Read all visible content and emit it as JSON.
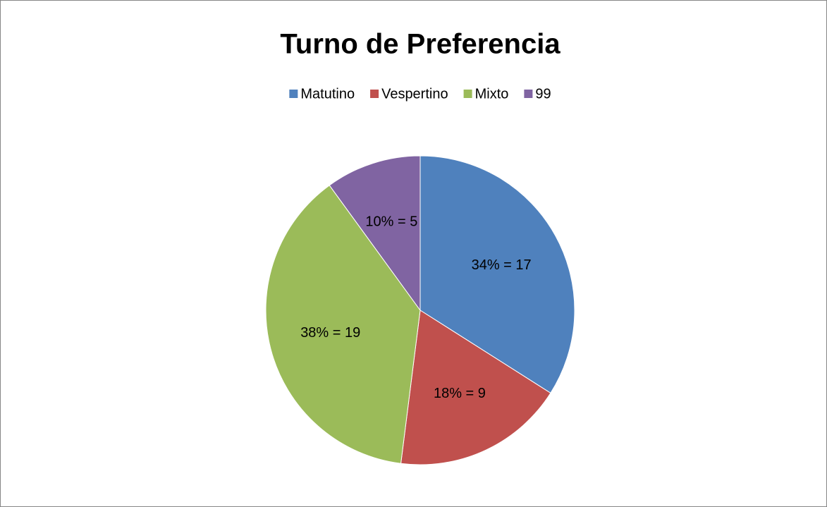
{
  "chart_data": {
    "type": "pie",
    "title": "Turno de Preferencia",
    "categories": [
      "Matutino",
      "Vespertino",
      "Mixto",
      "99"
    ],
    "values": [
      17,
      9,
      19,
      5
    ],
    "value_labels": [
      "34% = 17",
      "18% = 9",
      "38% = 19",
      "10% = 5"
    ],
    "colors": [
      "#4f81bd",
      "#c0504d",
      "#9bbb59",
      "#8064a2"
    ],
    "legend": "top"
  }
}
